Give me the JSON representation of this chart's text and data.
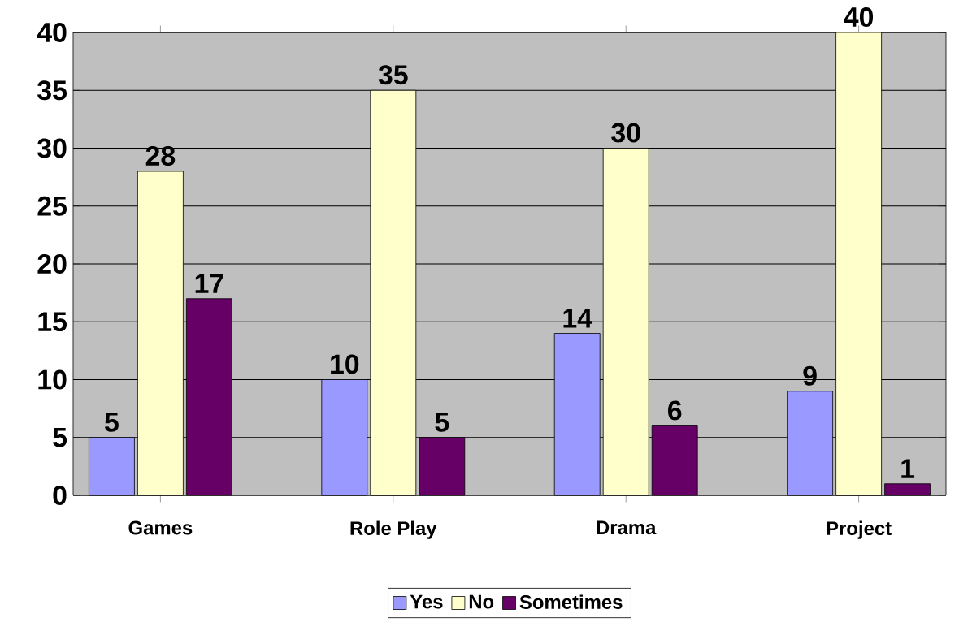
{
  "chart_data": {
    "type": "bar",
    "categories": [
      "Games",
      "Role Play",
      "Drama",
      "Project"
    ],
    "series": [
      {
        "name": "Yes",
        "color": "#9999ff",
        "values": [
          5,
          10,
          14,
          9
        ]
      },
      {
        "name": "No",
        "color": "#ffffcc",
        "values": [
          28,
          35,
          30,
          40
        ]
      },
      {
        "name": "Sometimes",
        "color": "#660066",
        "values": [
          17,
          5,
          6,
          1
        ]
      }
    ],
    "ylim": [
      0,
      40
    ],
    "yticks": [
      0,
      5,
      10,
      15,
      20,
      25,
      30,
      35,
      40
    ],
    "grid": "y",
    "legend": "bottom",
    "data_labels": true
  }
}
